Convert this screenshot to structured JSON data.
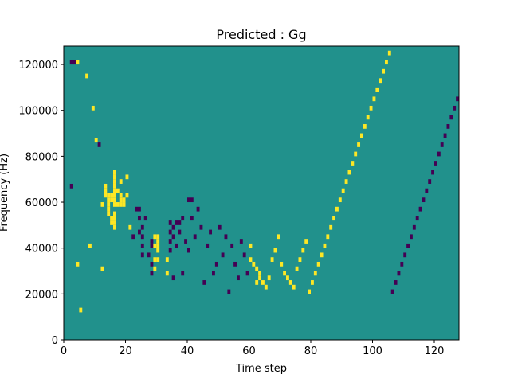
{
  "chart_data": {
    "type": "heatmap",
    "title": "Predicted : Gg",
    "xlabel": "Time step",
    "ylabel": "Frequency (Hz)",
    "xlim": [
      0,
      128
    ],
    "ylim": [
      0,
      128000
    ],
    "x_ticks": [
      0,
      20,
      40,
      60,
      80,
      100,
      120
    ],
    "y_ticks": [
      0,
      20000,
      40000,
      60000,
      80000,
      100000,
      120000
    ],
    "y_tick_labels": [
      "0",
      "20000",
      "40000",
      "60000",
      "80000",
      "100000",
      "120000"
    ],
    "n_time_steps": 128,
    "n_freq_bins": 64,
    "values_legend": {
      "0": "background",
      "1": "low (dark purple)",
      "2": "high (yellow)"
    },
    "colors": {
      "background": "#21918c",
      "low": "#440154",
      "high": "#fde725"
    },
    "cells": [
      [
        2,
        60,
        1
      ],
      [
        2,
        33,
        1
      ],
      [
        3,
        60,
        1
      ],
      [
        4,
        60,
        2
      ],
      [
        4,
        16,
        2
      ],
      [
        5,
        6,
        2
      ],
      [
        7,
        57,
        2
      ],
      [
        8,
        20,
        2
      ],
      [
        9,
        50,
        2
      ],
      [
        10,
        43,
        2
      ],
      [
        11,
        42,
        1
      ],
      [
        12,
        15,
        2
      ],
      [
        12,
        29,
        2
      ],
      [
        13,
        31,
        2
      ],
      [
        13,
        32,
        2
      ],
      [
        13,
        33,
        2
      ],
      [
        14,
        27,
        2
      ],
      [
        14,
        28,
        2
      ],
      [
        14,
        29,
        2
      ],
      [
        14,
        30,
        2
      ],
      [
        14,
        31,
        2
      ],
      [
        15,
        25,
        2
      ],
      [
        15,
        26,
        2
      ],
      [
        15,
        30,
        2
      ],
      [
        15,
        31,
        2
      ],
      [
        16,
        24,
        2
      ],
      [
        16,
        25,
        2
      ],
      [
        16,
        26,
        2
      ],
      [
        16,
        27,
        2
      ],
      [
        16,
        29,
        2
      ],
      [
        16,
        30,
        2
      ],
      [
        16,
        31,
        2
      ],
      [
        16,
        32,
        2
      ],
      [
        16,
        33,
        2
      ],
      [
        16,
        34,
        2
      ],
      [
        16,
        35,
        2
      ],
      [
        16,
        36,
        2
      ],
      [
        17,
        29,
        2
      ],
      [
        17,
        32,
        2
      ],
      [
        18,
        29,
        2
      ],
      [
        18,
        30,
        2
      ],
      [
        18,
        31,
        2
      ],
      [
        18,
        34,
        2
      ],
      [
        19,
        29,
        2
      ],
      [
        19,
        30,
        2
      ],
      [
        20,
        31,
        2
      ],
      [
        20,
        35,
        2
      ],
      [
        21,
        24,
        2
      ],
      [
        22,
        22,
        1
      ],
      [
        23,
        28,
        1
      ],
      [
        24,
        23,
        1
      ],
      [
        24,
        26,
        1
      ],
      [
        24,
        28,
        1
      ],
      [
        25,
        18,
        1
      ],
      [
        25,
        20,
        1
      ],
      [
        25,
        22,
        1
      ],
      [
        25,
        24,
        1
      ],
      [
        26,
        26,
        1
      ],
      [
        27,
        18,
        1
      ],
      [
        28,
        14,
        1
      ],
      [
        28,
        16,
        1
      ],
      [
        28,
        20,
        1
      ],
      [
        28,
        21,
        1
      ],
      [
        29,
        15,
        2
      ],
      [
        29,
        17,
        2
      ],
      [
        29,
        20,
        2
      ],
      [
        29,
        22,
        2
      ],
      [
        30,
        17,
        2
      ],
      [
        30,
        19,
        2
      ],
      [
        30,
        20,
        2
      ],
      [
        30,
        21,
        2
      ],
      [
        30,
        22,
        2
      ],
      [
        33,
        14,
        2
      ],
      [
        33,
        17,
        2
      ],
      [
        34,
        19,
        1
      ],
      [
        34,
        21,
        1
      ],
      [
        34,
        23,
        1
      ],
      [
        34,
        25,
        1
      ],
      [
        35,
        13,
        1
      ],
      [
        35,
        22,
        1
      ],
      [
        35,
        24,
        1
      ],
      [
        36,
        20,
        1
      ],
      [
        36,
        25,
        1
      ],
      [
        37,
        23,
        1
      ],
      [
        37,
        25,
        1
      ],
      [
        38,
        14,
        1
      ],
      [
        38,
        26,
        1
      ],
      [
        39,
        21,
        1
      ],
      [
        40,
        19,
        1
      ],
      [
        40,
        30,
        1
      ],
      [
        41,
        26,
        1
      ],
      [
        41,
        30,
        1
      ],
      [
        42,
        22,
        1
      ],
      [
        43,
        28,
        1
      ],
      [
        44,
        24,
        1
      ],
      [
        45,
        12,
        1
      ],
      [
        46,
        20,
        1
      ],
      [
        47,
        23,
        1
      ],
      [
        48,
        14,
        1
      ],
      [
        49,
        16,
        1
      ],
      [
        50,
        24,
        1
      ],
      [
        51,
        18,
        1
      ],
      [
        52,
        22,
        1
      ],
      [
        53,
        10,
        1
      ],
      [
        54,
        20,
        1
      ],
      [
        55,
        16,
        1
      ],
      [
        56,
        13,
        1
      ],
      [
        57,
        21,
        1
      ],
      [
        58,
        18,
        1
      ],
      [
        59,
        14,
        1
      ],
      [
        60,
        20,
        2
      ],
      [
        60,
        17,
        2
      ],
      [
        61,
        16,
        2
      ],
      [
        62,
        12,
        2
      ],
      [
        62,
        15,
        2
      ],
      [
        63,
        13,
        2
      ],
      [
        63,
        14,
        2
      ],
      [
        64,
        12,
        2
      ],
      [
        65,
        11,
        2
      ],
      [
        66,
        13,
        2
      ],
      [
        67,
        17,
        2
      ],
      [
        68,
        19,
        2
      ],
      [
        69,
        22,
        2
      ],
      [
        70,
        16,
        2
      ],
      [
        71,
        14,
        2
      ],
      [
        72,
        13,
        2
      ],
      [
        73,
        12,
        2
      ],
      [
        74,
        11,
        2
      ],
      [
        75,
        15,
        2
      ],
      [
        76,
        17,
        2
      ],
      [
        77,
        19,
        2
      ],
      [
        78,
        21,
        2
      ],
      [
        79,
        10,
        2
      ],
      [
        80,
        12,
        2
      ],
      [
        81,
        14,
        2
      ],
      [
        82,
        16,
        2
      ],
      [
        83,
        18,
        2
      ],
      [
        84,
        20,
        2
      ],
      [
        85,
        22,
        2
      ],
      [
        86,
        24,
        2
      ],
      [
        87,
        26,
        2
      ],
      [
        88,
        28,
        2
      ],
      [
        89,
        30,
        2
      ],
      [
        90,
        32,
        2
      ],
      [
        91,
        34,
        2
      ],
      [
        92,
        36,
        2
      ],
      [
        93,
        38,
        2
      ],
      [
        94,
        40,
        2
      ],
      [
        95,
        42,
        2
      ],
      [
        96,
        44,
        2
      ],
      [
        97,
        46,
        2
      ],
      [
        98,
        48,
        2
      ],
      [
        99,
        50,
        2
      ],
      [
        100,
        52,
        2
      ],
      [
        101,
        54,
        2
      ],
      [
        102,
        56,
        2
      ],
      [
        103,
        58,
        2
      ],
      [
        104,
        60,
        2
      ],
      [
        105,
        62,
        2
      ],
      [
        106,
        10,
        1
      ],
      [
        107,
        12,
        1
      ],
      [
        108,
        14,
        1
      ],
      [
        109,
        16,
        1
      ],
      [
        110,
        18,
        1
      ],
      [
        111,
        20,
        1
      ],
      [
        112,
        22,
        1
      ],
      [
        113,
        24,
        1
      ],
      [
        114,
        26,
        1
      ],
      [
        115,
        28,
        1
      ],
      [
        116,
        30,
        1
      ],
      [
        117,
        32,
        1
      ],
      [
        118,
        34,
        1
      ],
      [
        119,
        36,
        1
      ],
      [
        120,
        38,
        1
      ],
      [
        121,
        40,
        1
      ],
      [
        122,
        42,
        1
      ],
      [
        123,
        44,
        1
      ],
      [
        124,
        46,
        1
      ],
      [
        125,
        48,
        1
      ],
      [
        126,
        50,
        1
      ],
      [
        127,
        52,
        1
      ]
    ]
  }
}
